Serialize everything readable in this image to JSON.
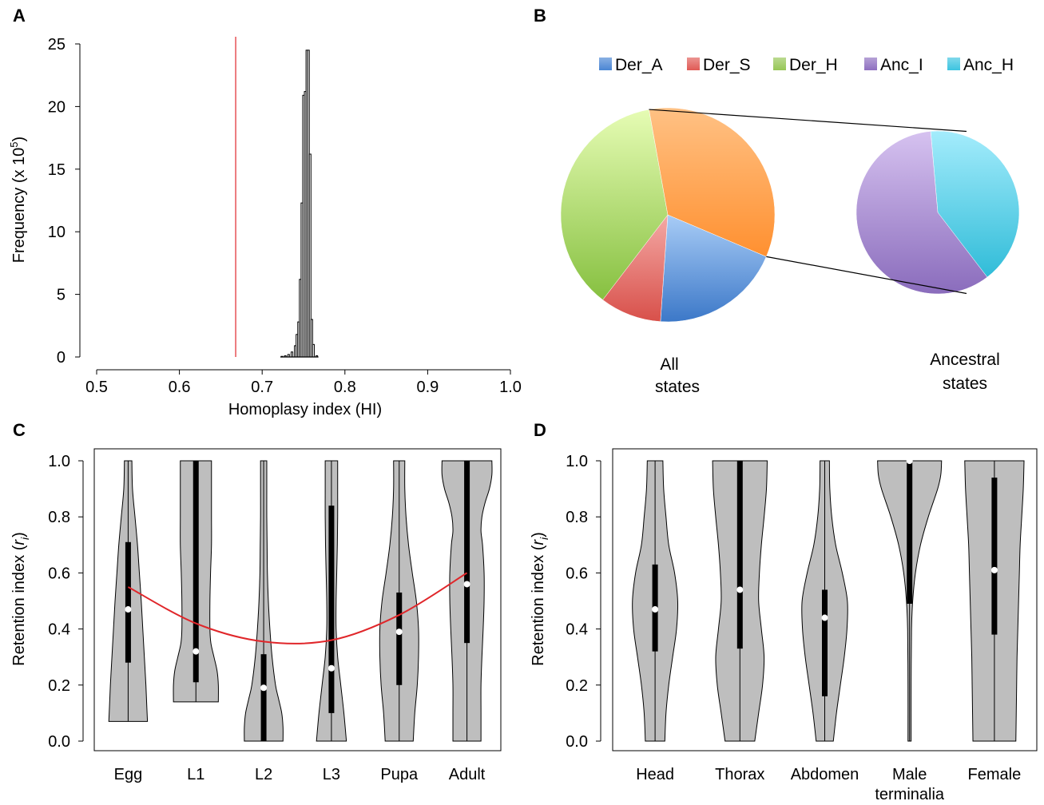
{
  "panels": {
    "A": "A",
    "B": "B",
    "C": "C",
    "D": "D"
  },
  "chart_data": [
    {
      "panel": "A",
      "type": "histogram",
      "xlabel": "Homoplasy index (HI)",
      "ylabel_main": "Frequency (x 10",
      "ylabel_sup": "5",
      "ylabel_close": ")",
      "xlim": [
        0.5,
        1.0
      ],
      "ylim": [
        0,
        25
      ],
      "xticks": [
        "0.5",
        "0.6",
        "0.7",
        "0.8",
        "0.9",
        "1.0"
      ],
      "yticks": [
        "0",
        "5",
        "10",
        "15",
        "20",
        "25"
      ],
      "reference_line": {
        "x": 0.668,
        "color": "#e0262a"
      },
      "bins": [
        {
          "x": 0.724,
          "y": 0.05
        },
        {
          "x": 0.728,
          "y": 0.1
        },
        {
          "x": 0.732,
          "y": 0.2
        },
        {
          "x": 0.736,
          "y": 0.4
        },
        {
          "x": 0.74,
          "y": 0.9
        },
        {
          "x": 0.742,
          "y": 1.8
        },
        {
          "x": 0.744,
          "y": 2.8
        },
        {
          "x": 0.746,
          "y": 6.2
        },
        {
          "x": 0.748,
          "y": 12.3
        },
        {
          "x": 0.75,
          "y": 20.9
        },
        {
          "x": 0.752,
          "y": 21.2
        },
        {
          "x": 0.754,
          "y": 24.5
        },
        {
          "x": 0.756,
          "y": 24.5
        },
        {
          "x": 0.758,
          "y": 16.2
        },
        {
          "x": 0.76,
          "y": 3.0
        },
        {
          "x": 0.762,
          "y": 1.0
        },
        {
          "x": 0.766,
          "y": 0.1
        }
      ]
    },
    {
      "panel": "B",
      "type": "pie",
      "legend_placement": "top",
      "legend": [
        {
          "label": "Der_A",
          "color": "#4a86d4"
        },
        {
          "label": "Der_S",
          "color": "#e05a55"
        },
        {
          "label": "Der_H",
          "color": "#96c655"
        },
        {
          "label": "Anc_I",
          "color": "#8e6fc0"
        },
        {
          "label": "Anc_H",
          "color": "#3cc4e0"
        }
      ],
      "pies": [
        {
          "label_line1": "All",
          "label_line2": "states",
          "slices": [
            {
              "name": "Der_A",
              "value": 0.197,
              "color_light": "#a8ccf6",
              "color_dark": "#3c78c8"
            },
            {
              "name": "Der_S",
              "value": 0.093,
              "color_light": "#f4a9a5",
              "color_dark": "#d8504a"
            },
            {
              "name": "Der_H",
              "value": 0.368,
              "color_light": "#e6fcb4",
              "color_dark": "#86c040"
            },
            {
              "name": "Ancestral",
              "value": 0.342,
              "color_light": "#ffc184",
              "color_dark": "#ff9030"
            }
          ]
        },
        {
          "label_line1": "Ancestral",
          "label_line2": "states",
          "slices": [
            {
              "name": "Anc_H",
              "value": 0.41,
              "color_light": "#a4ecfc",
              "color_dark": "#30bcd8"
            },
            {
              "name": "Anc_I",
              "value": 0.59,
              "color_light": "#d6c2f0",
              "color_dark": "#8a6cbc"
            }
          ]
        }
      ]
    },
    {
      "panel": "C",
      "type": "violin",
      "ylabel_main": "Retention index (",
      "ylabel_var": "r",
      "ylabel_sub": "i",
      "ylabel_close": ")",
      "ylim": [
        0,
        1
      ],
      "yticks": [
        "0.0",
        "0.2",
        "0.4",
        "0.6",
        "0.8",
        "1.0"
      ],
      "categories": [
        "Egg",
        "L1",
        "L2",
        "L3",
        "Pupa",
        "Adult"
      ],
      "fit_curve": {
        "color": "#e0262a",
        "points": [
          [
            0,
            0.55
          ],
          [
            1,
            0.42
          ],
          [
            2,
            0.355
          ],
          [
            3,
            0.36
          ],
          [
            4,
            0.45
          ],
          [
            5,
            0.6
          ]
        ]
      },
      "violins": [
        {
          "name": "Egg",
          "min": 0.07,
          "max": 1.0,
          "q1": 0.28,
          "q3": 0.71,
          "median": 0.47,
          "profile": [
            [
              0.07,
              0.62
            ],
            [
              0.12,
              0.6
            ],
            [
              0.2,
              0.57
            ],
            [
              0.3,
              0.52
            ],
            [
              0.4,
              0.47
            ],
            [
              0.5,
              0.42
            ],
            [
              0.6,
              0.36
            ],
            [
              0.7,
              0.3
            ],
            [
              0.8,
              0.22
            ],
            [
              0.9,
              0.14
            ],
            [
              1.0,
              0.12
            ]
          ]
        },
        {
          "name": "L1",
          "min": 0.14,
          "max": 1.0,
          "q1": 0.21,
          "q3": 1.0,
          "median": 0.32,
          "profile": [
            [
              0.14,
              0.72
            ],
            [
              0.2,
              0.72
            ],
            [
              0.25,
              0.68
            ],
            [
              0.3,
              0.58
            ],
            [
              0.35,
              0.48
            ],
            [
              0.4,
              0.45
            ],
            [
              0.5,
              0.45
            ],
            [
              0.6,
              0.47
            ],
            [
              0.7,
              0.5
            ],
            [
              0.8,
              0.5
            ],
            [
              0.9,
              0.5
            ],
            [
              1.0,
              0.5
            ]
          ]
        },
        {
          "name": "L2",
          "min": 0.0,
          "max": 1.0,
          "q1": 0.0,
          "q3": 0.31,
          "median": 0.19,
          "profile": [
            [
              0.0,
              0.62
            ],
            [
              0.05,
              0.62
            ],
            [
              0.1,
              0.58
            ],
            [
              0.15,
              0.48
            ],
            [
              0.2,
              0.38
            ],
            [
              0.3,
              0.27
            ],
            [
              0.4,
              0.2
            ],
            [
              0.5,
              0.15
            ],
            [
              0.6,
              0.12
            ],
            [
              0.7,
              0.11
            ],
            [
              0.8,
              0.1
            ],
            [
              0.9,
              0.1
            ],
            [
              1.0,
              0.1
            ]
          ]
        },
        {
          "name": "L3",
          "min": 0.0,
          "max": 1.0,
          "q1": 0.1,
          "q3": 0.84,
          "median": 0.26,
          "profile": [
            [
              0.0,
              0.48
            ],
            [
              0.1,
              0.4
            ],
            [
              0.2,
              0.3
            ],
            [
              0.3,
              0.2
            ],
            [
              0.4,
              0.15
            ],
            [
              0.5,
              0.15
            ],
            [
              0.6,
              0.17
            ],
            [
              0.7,
              0.19
            ],
            [
              0.8,
              0.2
            ],
            [
              0.9,
              0.2
            ],
            [
              1.0,
              0.2
            ]
          ]
        },
        {
          "name": "Pupa",
          "min": 0.0,
          "max": 1.0,
          "q1": 0.2,
          "q3": 0.53,
          "median": 0.39,
          "profile": [
            [
              0.0,
              0.45
            ],
            [
              0.1,
              0.5
            ],
            [
              0.2,
              0.58
            ],
            [
              0.3,
              0.62
            ],
            [
              0.4,
              0.62
            ],
            [
              0.5,
              0.55
            ],
            [
              0.6,
              0.42
            ],
            [
              0.7,
              0.3
            ],
            [
              0.8,
              0.22
            ],
            [
              0.9,
              0.18
            ],
            [
              1.0,
              0.18
            ]
          ]
        },
        {
          "name": "Adult",
          "min": 0.0,
          "max": 1.0,
          "q1": 0.35,
          "q3": 1.0,
          "median": 0.56,
          "profile": [
            [
              0.0,
              0.45
            ],
            [
              0.1,
              0.45
            ],
            [
              0.2,
              0.45
            ],
            [
              0.3,
              0.48
            ],
            [
              0.4,
              0.52
            ],
            [
              0.5,
              0.55
            ],
            [
              0.6,
              0.55
            ],
            [
              0.7,
              0.5
            ],
            [
              0.75,
              0.45
            ],
            [
              0.8,
              0.48
            ],
            [
              0.85,
              0.58
            ],
            [
              0.9,
              0.72
            ],
            [
              0.95,
              0.8
            ],
            [
              1.0,
              0.8
            ]
          ]
        }
      ]
    },
    {
      "panel": "D",
      "type": "violin",
      "ylabel_main": "Retention index (",
      "ylabel_var": "r",
      "ylabel_sub": "i",
      "ylabel_close": ")",
      "ylim": [
        0,
        1
      ],
      "yticks": [
        "0.0",
        "0.2",
        "0.4",
        "0.6",
        "0.8",
        "1.0"
      ],
      "categories": [
        "Head",
        "Thorax",
        "Abdomen",
        "Male",
        "Female"
      ],
      "category_second_line": [
        "",
        "",
        "",
        "terminalia",
        ""
      ],
      "violins": [
        {
          "name": "Head",
          "min": 0.0,
          "max": 1.0,
          "q1": 0.32,
          "q3": 0.63,
          "median": 0.47,
          "profile": [
            [
              0.0,
              0.25
            ],
            [
              0.1,
              0.28
            ],
            [
              0.2,
              0.35
            ],
            [
              0.3,
              0.45
            ],
            [
              0.4,
              0.55
            ],
            [
              0.5,
              0.58
            ],
            [
              0.6,
              0.5
            ],
            [
              0.7,
              0.35
            ],
            [
              0.8,
              0.28
            ],
            [
              0.9,
              0.22
            ],
            [
              1.0,
              0.2
            ]
          ]
        },
        {
          "name": "Thorax",
          "min": 0.0,
          "max": 1.0,
          "q1": 0.33,
          "q3": 1.0,
          "median": 0.54,
          "profile": [
            [
              0.0,
              0.38
            ],
            [
              0.1,
              0.48
            ],
            [
              0.2,
              0.58
            ],
            [
              0.3,
              0.62
            ],
            [
              0.4,
              0.55
            ],
            [
              0.5,
              0.48
            ],
            [
              0.6,
              0.5
            ],
            [
              0.7,
              0.55
            ],
            [
              0.8,
              0.62
            ],
            [
              0.9,
              0.68
            ],
            [
              1.0,
              0.7
            ]
          ]
        },
        {
          "name": "Abdomen",
          "min": 0.0,
          "max": 1.0,
          "q1": 0.16,
          "q3": 0.54,
          "median": 0.44,
          "profile": [
            [
              0.0,
              0.22
            ],
            [
              0.1,
              0.3
            ],
            [
              0.2,
              0.4
            ],
            [
              0.3,
              0.5
            ],
            [
              0.4,
              0.57
            ],
            [
              0.5,
              0.58
            ],
            [
              0.6,
              0.45
            ],
            [
              0.7,
              0.28
            ],
            [
              0.8,
              0.18
            ],
            [
              0.9,
              0.13
            ],
            [
              1.0,
              0.12
            ]
          ]
        },
        {
          "name": "Male terminalia",
          "min": 0.0,
          "max": 1.0,
          "q1": 0.49,
          "q3": 1.0,
          "median": 1.0,
          "profile": [
            [
              0.0,
              0.04
            ],
            [
              0.2,
              0.04
            ],
            [
              0.4,
              0.05
            ],
            [
              0.5,
              0.08
            ],
            [
              0.6,
              0.15
            ],
            [
              0.7,
              0.28
            ],
            [
              0.8,
              0.48
            ],
            [
              0.9,
              0.72
            ],
            [
              0.95,
              0.8
            ],
            [
              1.0,
              0.82
            ]
          ]
        },
        {
          "name": "Female",
          "min": 0.0,
          "max": 1.0,
          "q1": 0.38,
          "q3": 0.94,
          "median": 0.61,
          "profile": [
            [
              0.0,
              0.55
            ],
            [
              0.1,
              0.56
            ],
            [
              0.2,
              0.57
            ],
            [
              0.3,
              0.58
            ],
            [
              0.4,
              0.6
            ],
            [
              0.5,
              0.62
            ],
            [
              0.6,
              0.64
            ],
            [
              0.7,
              0.66
            ],
            [
              0.8,
              0.7
            ],
            [
              0.9,
              0.74
            ],
            [
              1.0,
              0.76
            ]
          ]
        }
      ]
    }
  ]
}
